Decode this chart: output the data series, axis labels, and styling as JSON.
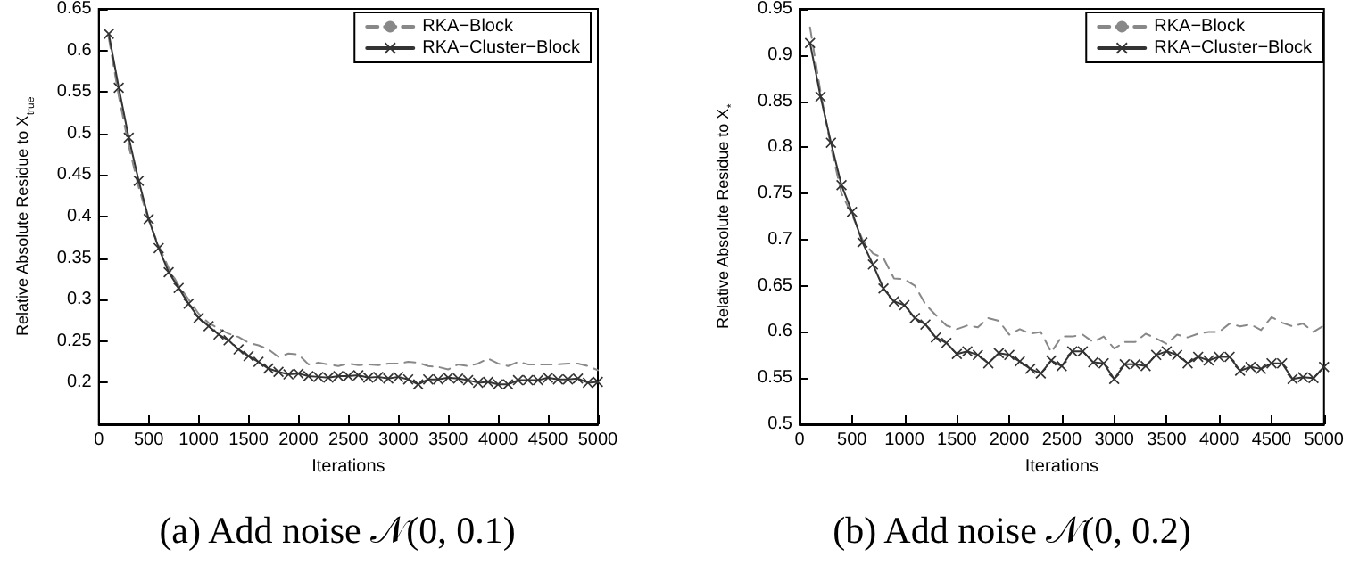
{
  "chart_data": [
    {
      "type": "line",
      "title": "(a) Add noise 𝒩(0, 0.1)",
      "xlabel": "Iterations",
      "ylabel": "Relative Absolute Residue to X$_{true}$",
      "x": [
        100,
        200,
        300,
        400,
        500,
        600,
        700,
        800,
        900,
        1000,
        1100,
        1200,
        1300,
        1400,
        1500,
        1600,
        1700,
        1800,
        1900,
        2000,
        2100,
        2200,
        2300,
        2400,
        2500,
        2600,
        2700,
        2800,
        2900,
        3000,
        3100,
        3200,
        3300,
        3400,
        3500,
        3600,
        3700,
        3800,
        3900,
        4000,
        4100,
        4200,
        4300,
        4400,
        4500,
        4600,
        4700,
        4800,
        4900,
        5000
      ],
      "series": [
        {
          "name": "RKA−Block",
          "color": "#888888",
          "marker": "none",
          "line_style": "dashed",
          "values": [
            0.615,
            0.545,
            0.485,
            0.435,
            0.395,
            0.365,
            0.338,
            0.317,
            0.3,
            0.283,
            0.272,
            0.265,
            0.259,
            0.255,
            0.248,
            0.245,
            0.24,
            0.231,
            0.235,
            0.234,
            0.222,
            0.224,
            0.222,
            0.22,
            0.223,
            0.221,
            0.222,
            0.221,
            0.223,
            0.223,
            0.225,
            0.224,
            0.22,
            0.219,
            0.216,
            0.222,
            0.22,
            0.223,
            0.229,
            0.223,
            0.22,
            0.225,
            0.222,
            0.222,
            0.222,
            0.222,
            0.223,
            0.223,
            0.22,
            0.215
          ]
        },
        {
          "name": "RKA−Cluster−Block",
          "color": "#333333",
          "marker": "cross",
          "line_style": "solid",
          "values": [
            0.62,
            0.555,
            0.495,
            0.443,
            0.397,
            0.362,
            0.333,
            0.314,
            0.295,
            0.278,
            0.268,
            0.258,
            0.251,
            0.24,
            0.232,
            0.225,
            0.217,
            0.213,
            0.21,
            0.211,
            0.208,
            0.207,
            0.206,
            0.208,
            0.208,
            0.209,
            0.206,
            0.207,
            0.205,
            0.207,
            0.204,
            0.198,
            0.204,
            0.204,
            0.206,
            0.205,
            0.203,
            0.2,
            0.201,
            0.198,
            0.198,
            0.203,
            0.203,
            0.203,
            0.206,
            0.204,
            0.204,
            0.205,
            0.2,
            0.201
          ]
        }
      ],
      "xlim": [
        0,
        5000
      ],
      "xticks": [
        0,
        500,
        1000,
        1500,
        2000,
        2500,
        3000,
        3500,
        4000,
        4500,
        5000
      ],
      "ylim": [
        0.15,
        0.65
      ],
      "yticks": [
        0.2,
        0.25,
        0.3,
        0.35,
        0.4,
        0.45,
        0.5,
        0.55,
        0.6,
        0.65
      ],
      "grid": false,
      "legend": "top right"
    },
    {
      "type": "line",
      "title": "(b) Add noise 𝒩(0, 0.2)",
      "xlabel": "Iterations",
      "ylabel": "Relative Absolute Residue to X$_{*}$",
      "x": [
        100,
        200,
        300,
        400,
        500,
        600,
        700,
        800,
        900,
        1000,
        1100,
        1200,
        1300,
        1400,
        1500,
        1600,
        1700,
        1800,
        1900,
        2000,
        2100,
        2200,
        2300,
        2400,
        2500,
        2600,
        2700,
        2800,
        2900,
        3000,
        3100,
        3200,
        3300,
        3400,
        3500,
        3600,
        3700,
        3800,
        3900,
        4000,
        4100,
        4200,
        4300,
        4400,
        4500,
        4600,
        4700,
        4800,
        4900,
        5000
      ],
      "series": [
        {
          "name": "RKA−Block",
          "color": "#888888",
          "marker": "none",
          "line_style": "dashed",
          "values": [
            0.93,
            0.86,
            0.8,
            0.75,
            0.727,
            0.7,
            0.685,
            0.68,
            0.658,
            0.657,
            0.65,
            0.63,
            0.618,
            0.607,
            0.603,
            0.607,
            0.605,
            0.615,
            0.612,
            0.597,
            0.603,
            0.598,
            0.6,
            0.578,
            0.595,
            0.595,
            0.597,
            0.589,
            0.595,
            0.582,
            0.589,
            0.589,
            0.598,
            0.593,
            0.587,
            0.597,
            0.594,
            0.598,
            0.6,
            0.6,
            0.609,
            0.606,
            0.608,
            0.602,
            0.616,
            0.61,
            0.606,
            0.609,
            0.6,
            0.607
          ]
        },
        {
          "name": "RKA−Cluster−Block",
          "color": "#333333",
          "marker": "cross",
          "line_style": "solid",
          "values": [
            0.913,
            0.855,
            0.805,
            0.759,
            0.73,
            0.697,
            0.673,
            0.647,
            0.633,
            0.629,
            0.615,
            0.608,
            0.594,
            0.588,
            0.576,
            0.579,
            0.575,
            0.566,
            0.577,
            0.575,
            0.568,
            0.56,
            0.555,
            0.569,
            0.563,
            0.579,
            0.579,
            0.567,
            0.566,
            0.549,
            0.565,
            0.565,
            0.563,
            0.575,
            0.579,
            0.575,
            0.566,
            0.573,
            0.569,
            0.573,
            0.573,
            0.558,
            0.562,
            0.56,
            0.566,
            0.566,
            0.549,
            0.551,
            0.55,
            0.562
          ]
        }
      ],
      "xlim": [
        0,
        5000
      ],
      "xticks": [
        0,
        500,
        1000,
        1500,
        2000,
        2500,
        3000,
        3500,
        4000,
        4500,
        5000
      ],
      "ylim": [
        0.5,
        0.95
      ],
      "yticks": [
        0.5,
        0.55,
        0.6,
        0.65,
        0.7,
        0.75,
        0.8,
        0.85,
        0.9,
        0.95
      ],
      "grid": false,
      "legend": "top right"
    }
  ]
}
